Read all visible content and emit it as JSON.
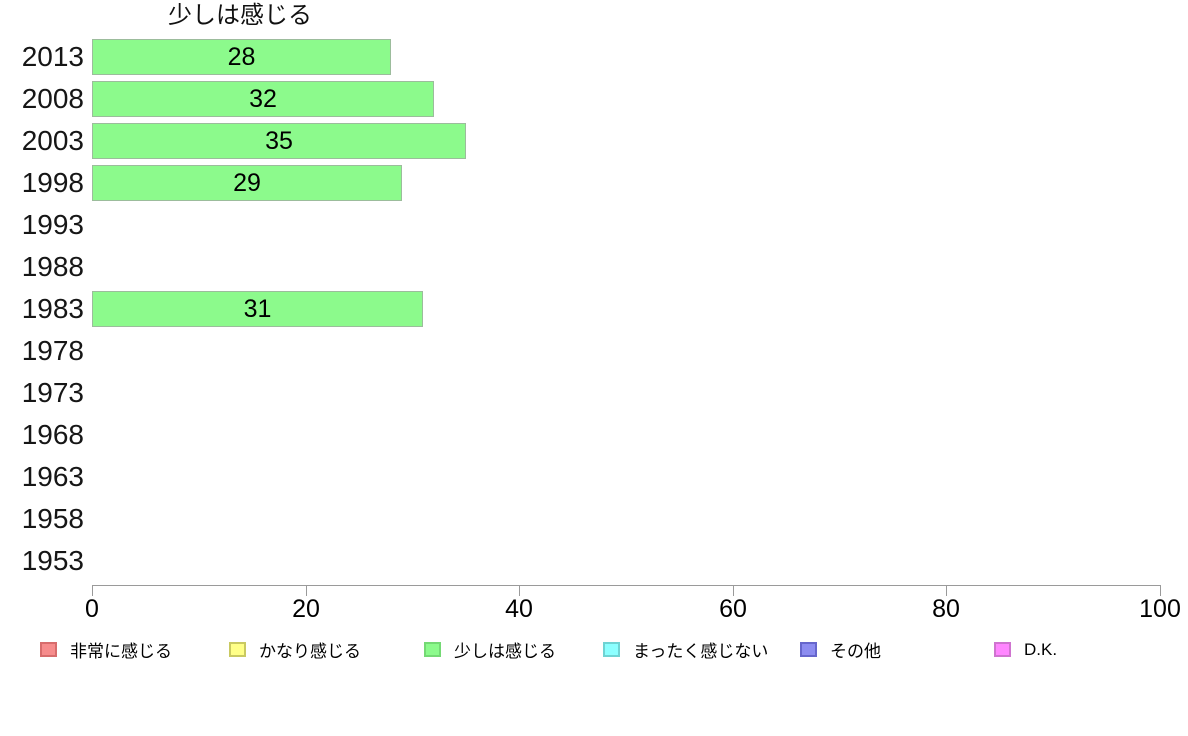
{
  "chart_data": {
    "type": "bar",
    "orientation": "horizontal",
    "title": "少しは感じる",
    "categories": [
      "2013",
      "2008",
      "2003",
      "1998",
      "1993",
      "1988",
      "1983",
      "1978",
      "1973",
      "1968",
      "1963",
      "1958",
      "1953"
    ],
    "values": [
      28,
      32,
      35,
      29,
      null,
      null,
      31,
      null,
      null,
      null,
      null,
      null,
      null
    ],
    "xlim": [
      0,
      100
    ],
    "x_ticks": [
      0,
      20,
      40,
      60,
      80,
      100
    ],
    "grid": "off",
    "legend_position": "bottom",
    "bar_color": "#8cfa8c",
    "bar_border_color": "#9cbc9c",
    "axis_color": "#9a9a9a",
    "legend": [
      {
        "label": "非常に感じる",
        "color": "#f68c8c",
        "border": "#d76c6c"
      },
      {
        "label": "かなり感じる",
        "color": "#ffff88",
        "border": "#c9c961"
      },
      {
        "label": "少しは感じる",
        "color": "#8cfa8c",
        "border": "#74d974"
      },
      {
        "label": "まったく感じない",
        "color": "#8cffff",
        "border": "#6fd3d3"
      },
      {
        "label": "その他",
        "color": "#8c8cf0",
        "border": "#6666cc"
      },
      {
        "label": "D.K.",
        "color": "#ff86ff",
        "border": "#cf74cf"
      }
    ]
  }
}
